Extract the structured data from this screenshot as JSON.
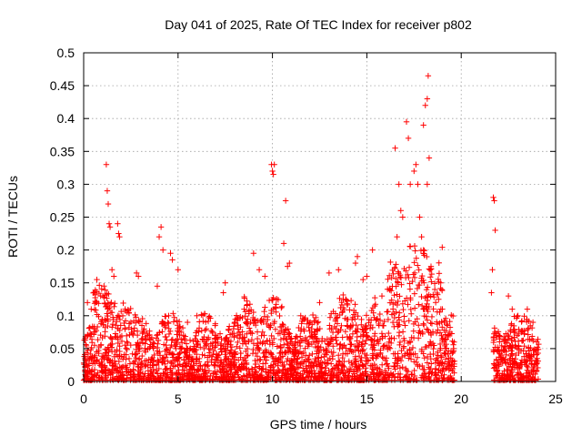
{
  "chart_data": {
    "type": "scatter",
    "title": "Day 041 of 2025, Rate Of TEC Index for receiver p802",
    "xlabel": "GPS time / hours",
    "ylabel": "ROTI / TECUs",
    "xlim": [
      0,
      25
    ],
    "ylim": [
      0,
      0.5
    ],
    "xticks": [
      0,
      5,
      10,
      15,
      20,
      25
    ],
    "xtick_labels": [
      "0",
      "5",
      "10",
      "15",
      "20",
      "25"
    ],
    "yticks": [
      0,
      0.05,
      0.1,
      0.15,
      0.2,
      0.25,
      0.3,
      0.35,
      0.4,
      0.45,
      0.5
    ],
    "ytick_labels": [
      "0",
      "0.05",
      "0.1",
      "0.15",
      "0.2",
      "0.25",
      "0.3",
      "0.35",
      "0.4",
      "0.45",
      "0.5"
    ],
    "grid": true,
    "marker": "plus",
    "color": "#ff0000",
    "data_gap": [
      19.7,
      21.7
    ],
    "series": [
      {
        "name": "ROTI",
        "points": [
          [
            1.2,
            0.33
          ],
          [
            1.25,
            0.29
          ],
          [
            1.3,
            0.27
          ],
          [
            1.35,
            0.24
          ],
          [
            1.4,
            0.235
          ],
          [
            1.8,
            0.24
          ],
          [
            1.85,
            0.225
          ],
          [
            1.9,
            0.22
          ],
          [
            1.5,
            0.17
          ],
          [
            1.6,
            0.16
          ],
          [
            0.7,
            0.155
          ],
          [
            2.8,
            0.165
          ],
          [
            2.9,
            0.16
          ],
          [
            4.1,
            0.235
          ],
          [
            4.0,
            0.22
          ],
          [
            4.2,
            0.2
          ],
          [
            4.6,
            0.195
          ],
          [
            4.7,
            0.185
          ],
          [
            5.0,
            0.17
          ],
          [
            3.9,
            0.145
          ],
          [
            7.5,
            0.15
          ],
          [
            7.4,
            0.135
          ],
          [
            9.0,
            0.195
          ],
          [
            9.3,
            0.17
          ],
          [
            9.6,
            0.16
          ],
          [
            9.95,
            0.33
          ],
          [
            10.0,
            0.32
          ],
          [
            10.05,
            0.315
          ],
          [
            10.1,
            0.33
          ],
          [
            10.7,
            0.275
          ],
          [
            10.6,
            0.21
          ],
          [
            10.9,
            0.18
          ],
          [
            10.8,
            0.175
          ],
          [
            13.0,
            0.165
          ],
          [
            13.5,
            0.17
          ],
          [
            14.5,
            0.19
          ],
          [
            14.4,
            0.18
          ],
          [
            15.3,
            0.2
          ],
          [
            15.0,
            0.16
          ],
          [
            14.8,
            0.155
          ],
          [
            16.5,
            0.355
          ],
          [
            16.7,
            0.3
          ],
          [
            16.8,
            0.26
          ],
          [
            16.9,
            0.25
          ],
          [
            16.6,
            0.22
          ],
          [
            17.1,
            0.395
          ],
          [
            17.2,
            0.37
          ],
          [
            17.3,
            0.3
          ],
          [
            17.5,
            0.32
          ],
          [
            17.6,
            0.33
          ],
          [
            17.7,
            0.3
          ],
          [
            17.8,
            0.25
          ],
          [
            18.0,
            0.39
          ],
          [
            18.1,
            0.42
          ],
          [
            18.2,
            0.43
          ],
          [
            18.25,
            0.465
          ],
          [
            18.3,
            0.34
          ],
          [
            18.2,
            0.3
          ],
          [
            17.9,
            0.22
          ],
          [
            18.0,
            0.2
          ],
          [
            18.4,
            0.175
          ],
          [
            18.6,
            0.14
          ],
          [
            18.8,
            0.125
          ],
          [
            19.1,
            0.09
          ],
          [
            19.4,
            0.075
          ],
          [
            19.6,
            0.05
          ],
          [
            21.7,
            0.28
          ],
          [
            21.75,
            0.275
          ],
          [
            21.8,
            0.23
          ],
          [
            21.65,
            0.17
          ],
          [
            21.6,
            0.135
          ],
          [
            22.0,
            0.07
          ],
          [
            22.5,
            0.13
          ],
          [
            22.7,
            0.11
          ],
          [
            23.0,
            0.1
          ],
          [
            23.5,
            0.11
          ],
          [
            23.8,
            0.09
          ],
          [
            24.0,
            0.06
          ],
          [
            0.2,
            0.12
          ],
          [
            0.4,
            0.11
          ],
          [
            0.9,
            0.13
          ],
          [
            2.2,
            0.11
          ],
          [
            2.5,
            0.09
          ],
          [
            3.2,
            0.08
          ],
          [
            5.5,
            0.09
          ],
          [
            6.0,
            0.1
          ],
          [
            6.5,
            0.08
          ],
          [
            7.0,
            0.06
          ],
          [
            8.0,
            0.09
          ],
          [
            8.5,
            0.11
          ],
          [
            11.5,
            0.1
          ],
          [
            12.0,
            0.09
          ],
          [
            12.5,
            0.12
          ],
          [
            15.8,
            0.13
          ],
          [
            16.2,
            0.14
          ],
          [
            19.0,
            0.11
          ]
        ]
      }
    ]
  }
}
